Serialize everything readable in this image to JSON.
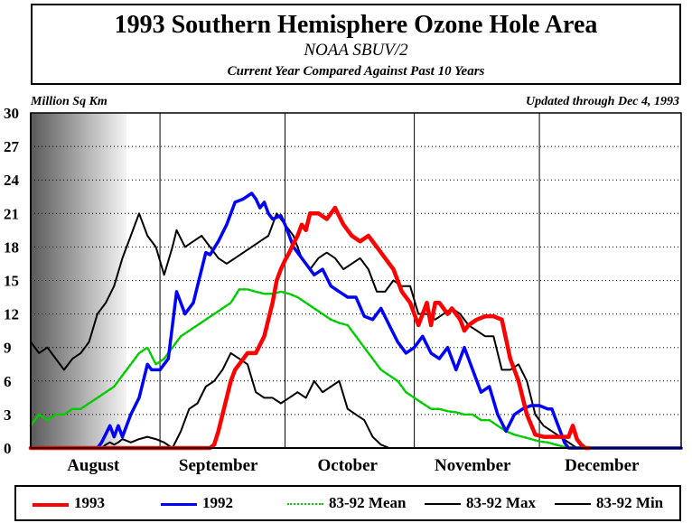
{
  "title": "1993 Southern Hemisphere Ozone Hole Area",
  "subtitle": "NOAA SBUV/2",
  "subtitle2": "Current Year Compared Against Past 10 Years",
  "unit_label": "Million Sq Km",
  "updated_label": "Updated through Dec 4, 1993",
  "colors": {
    "y1993": "#ff0000",
    "y1992": "#0000ff",
    "mean": "#00cc00",
    "max": "#000000",
    "min": "#000000"
  },
  "chart_data": {
    "type": "line",
    "title": "1993 Southern Hemisphere Ozone Hole Area",
    "ylabel": "Million Sq Km",
    "xlabel": "",
    "ylim": [
      0,
      30
    ],
    "yticks": [
      0,
      3,
      6,
      9,
      12,
      15,
      18,
      21,
      24,
      27,
      30
    ],
    "xlim": [
      1,
      157
    ],
    "x_units": "day since Aug 1",
    "month_labels": [
      {
        "label": "August",
        "day": 16
      },
      {
        "label": "September",
        "day": 46
      },
      {
        "label": "October",
        "day": 77
      },
      {
        "label": "November",
        "day": 107
      },
      {
        "label": "December",
        "day": 138
      }
    ],
    "month_boundaries": [
      32,
      62,
      93,
      123
    ],
    "grid": true,
    "legend_position": "bottom",
    "series": [
      {
        "name": "1993",
        "key": "y1993",
        "width": 4.5,
        "dash": "",
        "x": [
          1,
          20,
          40,
          44,
          45,
          46,
          47,
          48,
          49,
          50,
          51,
          52,
          53,
          55,
          57,
          59,
          60,
          61,
          62,
          63,
          64,
          65,
          66,
          67,
          68,
          70,
          72,
          74,
          76,
          78,
          80,
          82,
          84,
          86,
          88,
          90,
          92,
          94,
          96,
          97,
          98,
          99,
          100,
          101,
          102,
          103,
          104,
          105,
          106,
          108,
          110,
          112,
          114,
          116,
          118,
          120,
          122,
          124,
          126,
          128,
          130,
          131,
          132,
          133,
          134,
          135
        ],
        "y": [
          0,
          0,
          0,
          0,
          0.3,
          1.5,
          3,
          4.5,
          6,
          7,
          7.5,
          8,
          8.5,
          8.5,
          10,
          13,
          15,
          16,
          16.8,
          17.5,
          18.3,
          19,
          20,
          19.5,
          21,
          21,
          20.5,
          21.5,
          20,
          19,
          18.5,
          19,
          18,
          17,
          16,
          14,
          13,
          11,
          13,
          11,
          13,
          13,
          12.5,
          12,
          12.5,
          12,
          11.5,
          10.5,
          11,
          11.5,
          11.8,
          11.8,
          11.5,
          8,
          6,
          3,
          1.2,
          1,
          1,
          1,
          1,
          2,
          0.8,
          0.3,
          0,
          0
        ]
      },
      {
        "name": "1992",
        "key": "y1992",
        "width": 3.5,
        "dash": "",
        "x": [
          1,
          17,
          18,
          20,
          21,
          22,
          23,
          25,
          27,
          29,
          30,
          32,
          34,
          35,
          36,
          38,
          40,
          42,
          43,
          44,
          46,
          48,
          50,
          52,
          54,
          55,
          56,
          57,
          58,
          59,
          61,
          62,
          63,
          64,
          65,
          67,
          69,
          71,
          73,
          75,
          77,
          79,
          81,
          83,
          85,
          87,
          89,
          91,
          93,
          95,
          97,
          99,
          101,
          103,
          105,
          107,
          109,
          111,
          113,
          115,
          117,
          119,
          121,
          123,
          125,
          126,
          127,
          128,
          129,
          130,
          131,
          132,
          133,
          134,
          135,
          136,
          137,
          140,
          145,
          150,
          157
        ],
        "y": [
          0,
          0,
          0.5,
          2,
          1,
          2,
          1,
          3,
          4.5,
          7.5,
          7,
          7,
          8,
          11,
          14,
          12,
          13,
          16,
          17.5,
          17.3,
          18.5,
          20,
          22,
          22.3,
          22.8,
          22.3,
          21.5,
          22,
          21,
          20.5,
          20.8,
          20,
          19,
          18,
          17.5,
          16.5,
          15.5,
          16,
          14.5,
          14,
          13.5,
          13.5,
          11.8,
          11.5,
          12.5,
          11,
          9.5,
          8.5,
          9,
          10,
          8.5,
          8,
          9,
          7,
          9,
          7,
          5,
          5.5,
          3,
          1.5,
          3,
          3.5,
          3.8,
          3.8,
          3.5,
          3.5,
          2.5,
          1.5,
          0.5,
          0,
          0,
          0,
          0,
          0,
          0,
          0,
          0,
          0,
          0,
          0,
          0
        ]
      },
      {
        "name": "83-92 Mean",
        "key": "mean",
        "width": 2.5,
        "dash": "3,2",
        "x": [
          1,
          3,
          5,
          7,
          9,
          11,
          13,
          15,
          17,
          19,
          21,
          23,
          25,
          27,
          29,
          31,
          33,
          35,
          37,
          39,
          41,
          43,
          45,
          47,
          49,
          51,
          53,
          55,
          57,
          59,
          61,
          63,
          65,
          67,
          69,
          71,
          73,
          75,
          77,
          79,
          81,
          83,
          85,
          87,
          89,
          91,
          93,
          95,
          97,
          99,
          101,
          103,
          105,
          107,
          109,
          111,
          113,
          115,
          117,
          119,
          121,
          123,
          125,
          127,
          129,
          131,
          133
        ],
        "y": [
          2,
          3,
          2.5,
          3,
          3,
          3.5,
          3.5,
          4,
          4.5,
          5,
          5.5,
          6.5,
          7.5,
          8.5,
          9,
          7.5,
          8,
          9,
          10,
          10.5,
          11,
          11.5,
          12,
          12.5,
          13,
          14.2,
          14.2,
          14,
          13.8,
          13.8,
          14,
          13.8,
          13.5,
          13,
          12.5,
          12,
          11.5,
          11.2,
          11,
          10,
          9,
          8,
          7,
          6.5,
          6,
          5,
          4.5,
          4,
          3.5,
          3.5,
          3.3,
          3.2,
          3,
          3,
          2.5,
          2.5,
          2,
          1.5,
          1.2,
          1,
          0.8,
          0.6,
          0.5,
          0.3,
          0.1,
          0,
          0
        ]
      },
      {
        "name": "83-92 Max",
        "key": "max",
        "width": 2,
        "dash": "",
        "x": [
          1,
          3,
          5,
          7,
          9,
          11,
          13,
          15,
          17,
          19,
          21,
          23,
          25,
          27,
          29,
          31,
          33,
          35,
          36,
          38,
          40,
          42,
          44,
          46,
          48,
          50,
          52,
          54,
          56,
          58,
          60,
          62,
          64,
          66,
          68,
          70,
          72,
          74,
          76,
          78,
          80,
          82,
          84,
          86,
          88,
          90,
          92,
          94,
          96,
          98,
          100,
          102,
          104,
          106,
          108,
          110,
          112,
          114,
          116,
          118,
          120,
          122,
          124,
          126,
          128,
          130,
          132,
          134,
          136
        ],
        "y": [
          9.5,
          8.5,
          9,
          8,
          7,
          8,
          8.5,
          9.5,
          12,
          13,
          14.5,
          17,
          19,
          21,
          19,
          18,
          15.5,
          18,
          19.5,
          18,
          18.5,
          19,
          18,
          17,
          16.5,
          17,
          17.5,
          18,
          18.5,
          19,
          21,
          20,
          19,
          17,
          16,
          17,
          17.5,
          17,
          16,
          16.5,
          17,
          16,
          14,
          14,
          15,
          14.5,
          14.5,
          12,
          12,
          11.5,
          12,
          12.5,
          12,
          11,
          10.5,
          10,
          10,
          7,
          7,
          7.5,
          6,
          3,
          2,
          1.5,
          1,
          0.5,
          0,
          0,
          0
        ]
      },
      {
        "name": "83-92 Min",
        "key": "min",
        "width": 2,
        "dash": "",
        "x": [
          1,
          18,
          19,
          20,
          21,
          22,
          23,
          25,
          27,
          29,
          31,
          33,
          35,
          37,
          39,
          41,
          43,
          45,
          47,
          49,
          51,
          53,
          55,
          57,
          59,
          61,
          63,
          65,
          67,
          69,
          71,
          73,
          75,
          77,
          79,
          81,
          83,
          85,
          87
        ],
        "y": [
          0,
          0,
          0.3,
          0.5,
          0.3,
          0.5,
          0.8,
          0.5,
          0.8,
          1,
          0.8,
          0.5,
          0,
          1.5,
          3.5,
          4,
          5.5,
          6,
          7,
          8.5,
          8,
          7.5,
          5,
          4.5,
          4.5,
          4,
          4.5,
          5,
          4.5,
          6,
          5,
          5.5,
          6,
          3.5,
          3,
          2.5,
          1,
          0.3,
          0
        ]
      }
    ]
  },
  "legend": {
    "entries": [
      {
        "label": "1993",
        "key": "y1993"
      },
      {
        "label": "1992",
        "key": "y1992"
      },
      {
        "label": "83-92 Mean",
        "key": "mean"
      },
      {
        "label": "83-92 Max",
        "key": "max"
      },
      {
        "label": "83-92 Min",
        "key": "min"
      }
    ]
  }
}
